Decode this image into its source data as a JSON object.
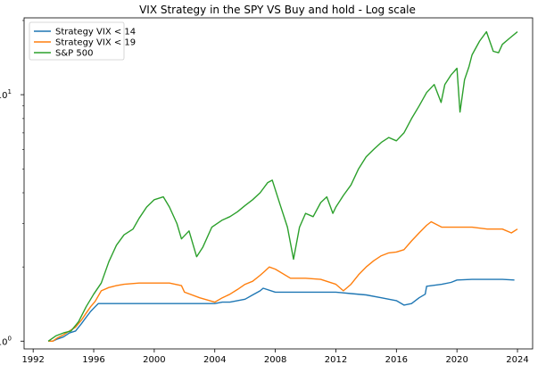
{
  "chart_data": {
    "type": "line",
    "title": "VIX Strategy in the SPY VS Buy and hold - Log scale",
    "xlabel": "",
    "ylabel": "",
    "yscale": "log",
    "xlim": [
      1991.4,
      2025.0
    ],
    "ylim": [
      0.93,
      20.5
    ],
    "x_ticks": [
      1992,
      1996,
      2000,
      2004,
      2008,
      2012,
      2016,
      2020,
      2024
    ],
    "x_tick_labels": [
      "1992",
      "1996",
      "2000",
      "2004",
      "2008",
      "2012",
      "2016",
      "2020",
      "2024"
    ],
    "y_ticks": [
      1,
      10
    ],
    "y_tick_labels": [
      "10^0",
      "10^1"
    ],
    "legend_position": "upper-left",
    "series": [
      {
        "name": "Strategy VIX < 14",
        "color": "#1f77b4",
        "x": [
          1993.0,
          1993.3,
          1993.6,
          1994.0,
          1994.4,
          1994.8,
          1995.2,
          1995.5,
          1995.8,
          1996.1,
          1996.3,
          1997.0,
          1998.0,
          1999.0,
          2000.0,
          2001.0,
          2002.0,
          2003.0,
          2004.0,
          2004.5,
          2005.0,
          2005.5,
          2006.0,
          2006.5,
          2007.0,
          2007.2,
          2008.0,
          2009.0,
          2010.0,
          2011.0,
          2012.0,
          2013.0,
          2014.0,
          2015.0,
          2015.5,
          2016.0,
          2016.5,
          2017.0,
          2017.5,
          2017.9,
          2018.0,
          2019.0,
          2019.6,
          2020.0,
          2021.0,
          2022.0,
          2023.0,
          2023.8
        ],
        "y": [
          1.0,
          1.0,
          1.02,
          1.04,
          1.08,
          1.1,
          1.18,
          1.25,
          1.32,
          1.38,
          1.42,
          1.42,
          1.42,
          1.42,
          1.42,
          1.42,
          1.42,
          1.42,
          1.42,
          1.44,
          1.44,
          1.46,
          1.48,
          1.54,
          1.6,
          1.64,
          1.58,
          1.58,
          1.58,
          1.58,
          1.58,
          1.56,
          1.54,
          1.5,
          1.48,
          1.46,
          1.4,
          1.42,
          1.5,
          1.55,
          1.67,
          1.7,
          1.73,
          1.77,
          1.78,
          1.78,
          1.78,
          1.77
        ]
      },
      {
        "name": "Strategy VIX < 19",
        "color": "#ff7f0e",
        "x": [
          1993.0,
          1993.3,
          1993.6,
          1994.0,
          1994.4,
          1994.8,
          1995.2,
          1995.5,
          1995.8,
          1996.1,
          1996.5,
          1997.0,
          1997.5,
          1998.0,
          1999.0,
          2000.0,
          2001.0,
          2001.8,
          2002.0,
          2003.0,
          2004.0,
          2004.5,
          2005.0,
          2005.5,
          2006.0,
          2006.5,
          2007.0,
          2007.3,
          2007.6,
          2008.0,
          2009.0,
          2010.0,
          2011.0,
          2012.0,
          2012.5,
          2013.0,
          2013.5,
          2014.0,
          2014.5,
          2015.0,
          2015.5,
          2016.0,
          2016.5,
          2017.0,
          2017.5,
          2018.0,
          2018.3,
          2019.0,
          2020.0,
          2021.0,
          2022.0,
          2023.0,
          2023.6,
          2024.0
        ],
        "y": [
          1.0,
          1.0,
          1.03,
          1.06,
          1.1,
          1.14,
          1.22,
          1.3,
          1.38,
          1.45,
          1.6,
          1.65,
          1.68,
          1.7,
          1.72,
          1.72,
          1.72,
          1.68,
          1.58,
          1.5,
          1.44,
          1.5,
          1.55,
          1.62,
          1.7,
          1.75,
          1.85,
          1.92,
          2.0,
          1.96,
          1.8,
          1.8,
          1.78,
          1.7,
          1.6,
          1.7,
          1.86,
          2.0,
          2.12,
          2.22,
          2.28,
          2.3,
          2.35,
          2.55,
          2.75,
          2.95,
          3.05,
          2.9,
          2.9,
          2.9,
          2.85,
          2.85,
          2.75,
          2.85
        ]
      },
      {
        "name": "S&P 500",
        "color": "#2ca02c",
        "x": [
          1993.0,
          1993.5,
          1994.0,
          1994.5,
          1995.0,
          1995.5,
          1996.0,
          1996.5,
          1997.0,
          1997.5,
          1998.0,
          1998.6,
          1999.0,
          1999.5,
          2000.0,
          2000.6,
          2001.0,
          2001.5,
          2001.8,
          2002.3,
          2002.8,
          2003.2,
          2003.8,
          2004.5,
          2005.0,
          2005.5,
          2006.0,
          2006.5,
          2007.0,
          2007.5,
          2007.8,
          2008.3,
          2008.8,
          2009.2,
          2009.6,
          2010.0,
          2010.5,
          2011.0,
          2011.4,
          2011.8,
          2012.0,
          2012.5,
          2013.0,
          2013.5,
          2014.0,
          2014.5,
          2015.0,
          2015.5,
          2016.0,
          2016.5,
          2017.0,
          2017.5,
          2018.0,
          2018.5,
          2018.95,
          2019.2,
          2019.6,
          2020.0,
          2020.2,
          2020.5,
          2020.8,
          2021.0,
          2021.5,
          2021.95,
          2022.4,
          2022.75,
          2023.0,
          2023.5,
          2024.0
        ],
        "y": [
          1.0,
          1.05,
          1.08,
          1.1,
          1.2,
          1.38,
          1.55,
          1.72,
          2.1,
          2.45,
          2.7,
          2.85,
          3.15,
          3.5,
          3.75,
          3.85,
          3.5,
          3.0,
          2.6,
          2.8,
          2.2,
          2.4,
          2.9,
          3.1,
          3.2,
          3.35,
          3.55,
          3.75,
          4.0,
          4.4,
          4.5,
          3.6,
          2.9,
          2.15,
          2.9,
          3.3,
          3.2,
          3.65,
          3.85,
          3.3,
          3.5,
          3.9,
          4.3,
          5.0,
          5.6,
          6.0,
          6.4,
          6.7,
          6.5,
          7.0,
          8.0,
          9.0,
          10.2,
          11.0,
          9.3,
          11.0,
          12.0,
          12.8,
          8.5,
          11.5,
          13.0,
          14.5,
          16.5,
          18.0,
          15.0,
          14.8,
          16.0,
          17.0,
          18.0
        ]
      }
    ]
  }
}
